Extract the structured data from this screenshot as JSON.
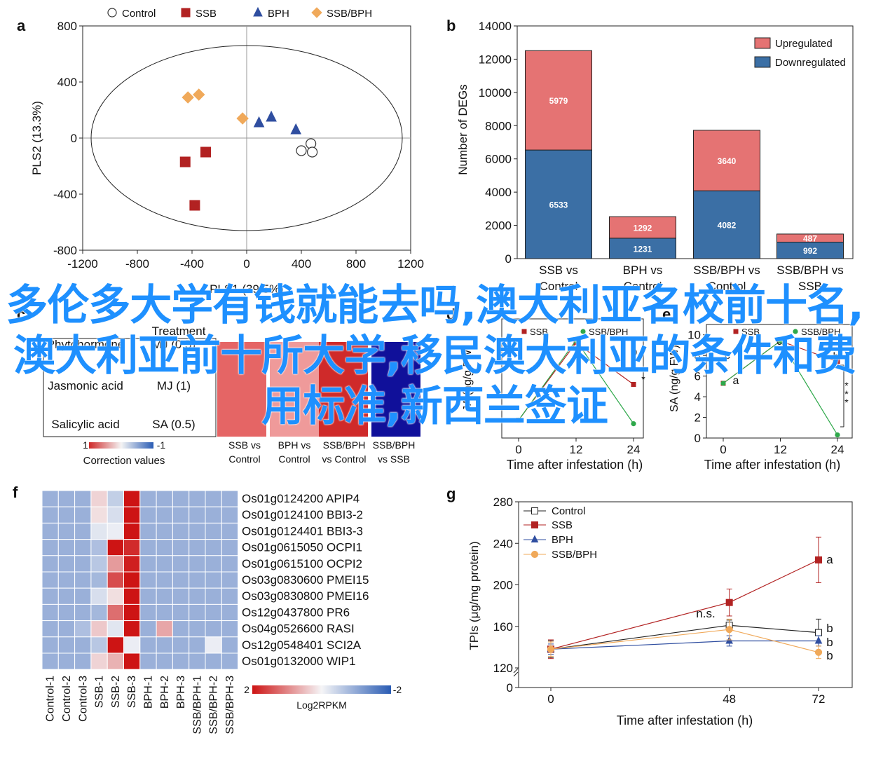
{
  "panels": {
    "a": "a",
    "b": "b",
    "c": "c",
    "d": "d",
    "e": "e",
    "f": "f",
    "g": "g"
  },
  "overlay_text": "多伦多大学有钱就能去吗,澳大利亚名校前十名,澳大利亚前十所大学,移民澳大利亚的条件和费用标准,新西兰签证",
  "colors": {
    "control": "#333333",
    "ssb": "#b22222",
    "bph": "#2f4ea0",
    "ssbbph": "#f0a95a",
    "upregulated": "#e57373",
    "downregulated": "#3b6fa5",
    "overlay": "#1e90ff"
  },
  "chart_data": [
    {
      "panel": "a",
      "type": "scatter",
      "xlabel": "PLS1 (39.5%)",
      "ylabel": "PLS2 (13.3%)",
      "xlim": [
        -1200,
        1200
      ],
      "ylim": [
        -800,
        800
      ],
      "xticks": [
        "-1200",
        "-800",
        "-400",
        "0",
        "400",
        "800",
        "1200"
      ],
      "yticks": [
        "800",
        "400",
        "0",
        "-400",
        "-800"
      ],
      "legend": [
        "Control",
        "SSB",
        "BPH",
        "SSB/BPH"
      ],
      "series": [
        {
          "name": "Control",
          "marker": "circle",
          "points": [
            [
              470,
              -40
            ],
            [
              400,
              -90
            ],
            [
              480,
              -100
            ]
          ]
        },
        {
          "name": "SSB",
          "marker": "square",
          "points": [
            [
              -450,
              -170
            ],
            [
              -300,
              -100
            ],
            [
              -380,
              -480
            ]
          ]
        },
        {
          "name": "BPH",
          "marker": "triangle",
          "points": [
            [
              90,
              110
            ],
            [
              180,
              150
            ],
            [
              360,
              60
            ]
          ]
        },
        {
          "name": "SSB/BPH",
          "marker": "diamond",
          "points": [
            [
              -430,
              290
            ],
            [
              -350,
              310
            ],
            [
              -30,
              140
            ]
          ]
        }
      ]
    },
    {
      "panel": "b",
      "type": "bar",
      "ylabel": "Number of DEGs",
      "ylim": [
        0,
        14000
      ],
      "yticks": [
        "0",
        "2000",
        "4000",
        "6000",
        "8000",
        "10000",
        "12000",
        "14000"
      ],
      "categories": [
        [
          "SSB vs",
          "Control"
        ],
        [
          "BPH vs",
          "Control"
        ],
        [
          "SSB/BPH vs",
          "Control"
        ],
        [
          "SSB/BPH vs",
          "SSB"
        ]
      ],
      "series": [
        {
          "name": "Downregulated",
          "values": [
            6533,
            1231,
            4082,
            992
          ]
        },
        {
          "name": "Upregulated",
          "values": [
            5979,
            1292,
            3640,
            487
          ]
        }
      ]
    },
    {
      "panel": "c",
      "type": "heatmap",
      "header": "Treatment",
      "rows": [
        "Phytohormone",
        "Jasmonic acid",
        "Salicylic acid"
      ],
      "row_labels_right": [
        "MJ (0.5)",
        "MJ (1)",
        "SA (0.5)"
      ],
      "columns": [
        [
          "SSB vs",
          "Control"
        ],
        [
          "BPH vs",
          "Control"
        ],
        [
          "SSB/BPH",
          "vs Control"
        ],
        [
          "SSB/BPH",
          "vs SSB"
        ]
      ],
      "scale_label": "Correction values",
      "scale_ticks": [
        "1",
        "-1"
      ]
    },
    {
      "panel": "d",
      "type": "line",
      "xlabel": "Time after infestation (h)",
      "ylabel": "JA (ng/g FW)",
      "xticks": [
        "0",
        "12",
        "24"
      ],
      "legend": [
        "SSB",
        "SSB/BPH"
      ],
      "annotations": [
        "b",
        "*"
      ],
      "series": [
        {
          "name": "SSB",
          "x": [
            0,
            12,
            24
          ],
          "y": [
            1.5,
            8.0,
            4.5
          ]
        },
        {
          "name": "SSB/BPH",
          "x": [
            0,
            12,
            24
          ],
          "y": [
            1.5,
            8.2,
            1.2
          ]
        }
      ]
    },
    {
      "panel": "e",
      "type": "line",
      "xlabel": "Time after infestation (h)",
      "ylabel": "SA (ng/g FW)",
      "yticks": [
        "0",
        "2",
        "4",
        "6",
        "8",
        "10"
      ],
      "xticks": [
        "0",
        "12",
        "24"
      ],
      "legend": [
        "SSB",
        "SSB/BPH"
      ],
      "annotations": [
        "b",
        "c",
        "c",
        "a",
        "***"
      ],
      "series": [
        {
          "name": "SSB",
          "x": [
            0,
            12,
            24
          ],
          "y": [
            5.3,
            9.4,
            7.4
          ]
        },
        {
          "name": "SSB/BPH",
          "x": [
            0,
            12,
            24
          ],
          "y": [
            5.3,
            9.4,
            0.3
          ]
        }
      ]
    },
    {
      "panel": "f",
      "type": "heatmap",
      "scale_label": "Log2RPKM",
      "scale_ticks": [
        "2",
        "-2"
      ],
      "rows": [
        "Os01g0124200 APIP4",
        "Os01g0124100 BBI3-2",
        "Os01g0124401 BBI3-3",
        "Os01g0615050 OCPI1",
        "Os01g0615100 OCPI2",
        "Os03g0830600 PMEI15",
        "Os03g0830800 PMEI16",
        "Os12g0437800 PR6",
        "Os04g0526600 RASI",
        "Os12g0548401 SCI2A",
        "Os01g0132000 WIP1"
      ],
      "columns": [
        "Control-1",
        "Control-2",
        "Control-3",
        "SSB-1",
        "SSB-2",
        "SSB-3",
        "BPH-1",
        "BPH-2",
        "BPH-3",
        "SSB/BPH-1",
        "SSB/BPH-2",
        "SSB/BPH-3"
      ],
      "values": [
        [
          -0.9,
          -0.9,
          -0.9,
          0.3,
          -0.5,
          2.0,
          -0.9,
          -0.9,
          -0.9,
          -0.9,
          -0.9,
          -0.9
        ],
        [
          -0.9,
          -0.9,
          -0.9,
          0.2,
          -0.3,
          2.0,
          -0.9,
          -0.9,
          -0.9,
          -0.9,
          -0.9,
          -0.9
        ],
        [
          -0.9,
          -0.9,
          -0.9,
          -0.2,
          -0.1,
          2.0,
          -0.9,
          -0.9,
          -0.9,
          -0.9,
          -0.9,
          -0.9
        ],
        [
          -0.9,
          -0.9,
          -0.9,
          -0.7,
          2.0,
          1.8,
          -0.9,
          -0.9,
          -0.9,
          -0.9,
          -0.9,
          -0.9
        ],
        [
          -0.9,
          -0.9,
          -0.9,
          -0.6,
          0.8,
          1.9,
          -0.9,
          -0.9,
          -0.9,
          -0.9,
          -0.9,
          -0.9
        ],
        [
          -0.9,
          -0.9,
          -0.9,
          -0.8,
          1.5,
          2.0,
          -0.9,
          -0.9,
          -0.9,
          -0.9,
          -0.9,
          -0.9
        ],
        [
          -0.9,
          -0.9,
          -0.9,
          -0.3,
          0.2,
          2.0,
          -0.9,
          -0.9,
          -0.9,
          -0.9,
          -0.9,
          -0.9
        ],
        [
          -0.9,
          -0.9,
          -0.9,
          -0.8,
          1.2,
          2.0,
          -0.9,
          -0.9,
          -0.9,
          -0.9,
          -0.9,
          -0.9
        ],
        [
          -0.9,
          -0.9,
          -0.7,
          0.4,
          -0.2,
          2.0,
          -0.9,
          0.7,
          -0.9,
          -0.9,
          -0.9,
          -0.9
        ],
        [
          -0.9,
          -0.9,
          -0.9,
          -0.6,
          2.0,
          -0.1,
          -0.9,
          -0.9,
          -0.9,
          -0.9,
          -0.1,
          -0.9
        ],
        [
          -0.9,
          -0.9,
          -0.9,
          0.3,
          0.6,
          2.0,
          -0.9,
          -0.9,
          -0.9,
          -0.9,
          -0.9,
          -0.9
        ]
      ]
    },
    {
      "panel": "g",
      "type": "line",
      "xlabel": "Time after infestation (h)",
      "ylabel": "TPIs (μg/mg protein)",
      "xticks": [
        "0",
        "48",
        "72"
      ],
      "yticks": [
        "0",
        "120",
        "160",
        "200",
        "240",
        "280"
      ],
      "legend": [
        "Control",
        "SSB",
        "BPH",
        "SSB/BPH"
      ],
      "annotations": [
        "a",
        "n.s.",
        "b",
        "b",
        "b"
      ],
      "series": [
        {
          "name": "Control",
          "x": [
            0,
            48,
            72
          ],
          "y": [
            138,
            161,
            154
          ],
          "err": [
            8,
            5,
            13
          ]
        },
        {
          "name": "SSB",
          "x": [
            0,
            48,
            72
          ],
          "y": [
            138,
            183,
            224
          ],
          "err": [
            9,
            13,
            22
          ]
        },
        {
          "name": "BPH",
          "x": [
            0,
            48,
            72
          ],
          "y": [
            138,
            146,
            146
          ],
          "err": [
            5,
            5,
            5
          ]
        },
        {
          "name": "SSB/BPH",
          "x": [
            0,
            48,
            72
          ],
          "y": [
            138,
            157,
            135
          ],
          "err": [
            7,
            10,
            6
          ]
        }
      ]
    }
  ]
}
